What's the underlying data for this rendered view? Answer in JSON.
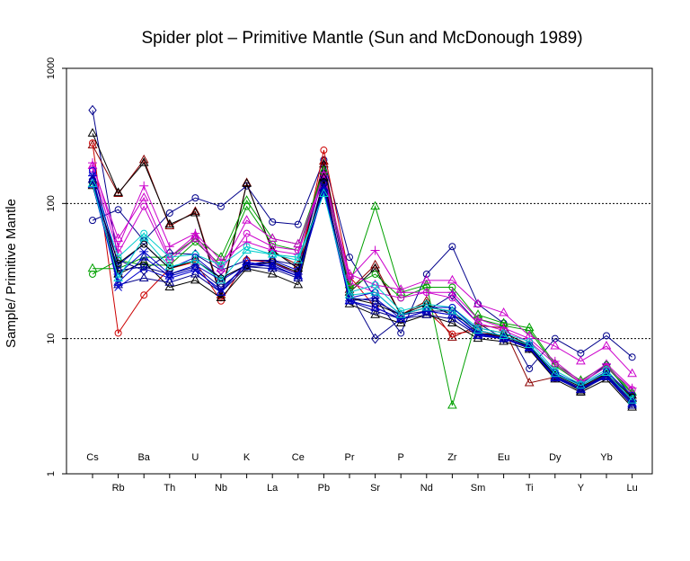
{
  "chart_data": {
    "type": "line",
    "title": "Spider plot –  Primitive Mantle (Sun  and  McDonough 1989)",
    "ylabel": "Sample/ Primitive Mantle",
    "xlabel": "",
    "yscale": "log",
    "ylim": [
      1,
      1000
    ],
    "ytick_labels": [
      "1",
      "10",
      "100",
      "1000"
    ],
    "yticks": [
      1,
      10,
      100,
      1000
    ],
    "reference_lines": [
      10,
      100
    ],
    "categories": [
      "Cs",
      "Rb",
      "Ba",
      "Th",
      "U",
      "Nb",
      "K",
      "La",
      "Ce",
      "Pb",
      "Pr",
      "Sr",
      "P",
      "Nd",
      "Zr",
      "Sm",
      "Eu",
      "Ti",
      "Dy",
      "Y",
      "Yb",
      "Lu"
    ],
    "series": [
      {
        "name": "s1",
        "color": "#00008B",
        "marker": "circle",
        "values": [
          75,
          90,
          53,
          85,
          110,
          95,
          135,
          73,
          70,
          210,
          40,
          20,
          11,
          30,
          48,
          18,
          13,
          6,
          10,
          7.8,
          10.5,
          7.3
        ]
      },
      {
        "name": "s2",
        "color": "#00008B",
        "marker": "diamond",
        "values": [
          490,
          38,
          32,
          43,
          42,
          32,
          38,
          38,
          35,
          165,
          22,
          10,
          14,
          16,
          21,
          13,
          10,
          8.5,
          5.5,
          4.6,
          6.4,
          3.7
        ]
      },
      {
        "name": "s3",
        "color": "#8B0000",
        "marker": "triangle",
        "values": [
          270,
          118,
          210,
          68,
          87,
          21,
          142,
          44,
          35,
          205,
          23,
          35,
          15,
          19,
          10.2,
          12.5,
          12,
          4.7,
          5.2,
          4.2,
          5.5,
          3.8
        ]
      },
      {
        "name": "s4",
        "color": "#000000",
        "marker": "triangle",
        "values": [
          330,
          120,
          200,
          70,
          85,
          20,
          140,
          45,
          33,
          195,
          22,
          33,
          15,
          18,
          15,
          12,
          11,
          9,
          5.2,
          4.1,
          5.3,
          3.6
        ]
      },
      {
        "name": "s5",
        "color": "#CC0000",
        "marker": "circle",
        "values": [
          280,
          11,
          21,
          33,
          37,
          19,
          38,
          37,
          30,
          248,
          29,
          17,
          14,
          16,
          10.8,
          11.5,
          10.2,
          8.5,
          5.1,
          4.3,
          5.6,
          3.4
        ]
      },
      {
        "name": "s6",
        "color": "#00A000",
        "marker": "triangle",
        "values": [
          33,
          33,
          40,
          40,
          55,
          40,
          105,
          55,
          50,
          175,
          25,
          95,
          22,
          25,
          3.2,
          15,
          13,
          12,
          6.5,
          4.9,
          6.4,
          4
        ]
      },
      {
        "name": "s7",
        "color": "#00A000",
        "marker": "circle",
        "values": [
          30,
          38,
          35,
          35,
          52,
          35,
          95,
          50,
          45,
          170,
          24,
          30,
          20,
          24,
          24,
          14,
          12.5,
          11.5,
          6.3,
          4.7,
          6.2,
          3.9
        ]
      },
      {
        "name": "s8",
        "color": "#CC00CC",
        "marker": "plus",
        "values": [
          200,
          48,
          135,
          48,
          60,
          38,
          52,
          45,
          42,
          170,
          28,
          45,
          22,
          22,
          22,
          14,
          12,
          10,
          6.8,
          4.8,
          6.5,
          4.3
        ]
      },
      {
        "name": "s9",
        "color": "#CC00CC",
        "marker": "triangle",
        "values": [
          190,
          55,
          110,
          40,
          58,
          33,
          75,
          55,
          50,
          160,
          30,
          25,
          23,
          27,
          27,
          18,
          15.5,
          10.5,
          8.8,
          6.8,
          8.8,
          5.5
        ]
      },
      {
        "name": "s10",
        "color": "#CC00CC",
        "marker": "circle",
        "values": [
          180,
          43,
          95,
          38,
          55,
          32,
          60,
          48,
          45,
          150,
          26,
          22,
          20,
          22,
          20,
          13,
          11.5,
          9.5,
          6.5,
          4.7,
          6.2,
          4.2
        ]
      },
      {
        "name": "s11",
        "color": "#00CCCC",
        "marker": "circle",
        "values": [
          145,
          40,
          60,
          40,
          42,
          35,
          48,
          42,
          40,
          120,
          22,
          25,
          16,
          18,
          17,
          12,
          11,
          9.5,
          5.8,
          4.6,
          5.9,
          3.6
        ]
      },
      {
        "name": "s12",
        "color": "#0000CC",
        "marker": "circle",
        "values": [
          175,
          35,
          50,
          33,
          40,
          28,
          35,
          38,
          32,
          140,
          20,
          22,
          15,
          17,
          17,
          11.5,
          10.5,
          9,
          5.6,
          4.5,
          5.7,
          3.8
        ]
      },
      {
        "name": "s13",
        "color": "#0000CC",
        "marker": "asterisk",
        "values": [
          160,
          30,
          44,
          30,
          35,
          27,
          35,
          36,
          30,
          150,
          19,
          20,
          14,
          16,
          16,
          11,
          10,
          8.5,
          5.3,
          4.3,
          5.4,
          3.5
        ]
      },
      {
        "name": "s14",
        "color": "#000000",
        "marker": "circle",
        "values": [
          140,
          36,
          50,
          33,
          38,
          28,
          35,
          37,
          31,
          145,
          20,
          18,
          15,
          17,
          16,
          11,
          10.5,
          8.8,
          5.4,
          4.4,
          5.5,
          3.7
        ]
      },
      {
        "name": "s15",
        "color": "#000000",
        "marker": "triangle",
        "values": [
          135,
          30,
          37,
          24,
          27,
          20,
          33,
          30,
          25,
          155,
          18,
          15,
          13,
          15,
          13,
          10,
          9.5,
          8.3,
          5,
          4,
          5,
          3.1
        ]
      },
      {
        "name": "s16",
        "color": "#00008B",
        "marker": "triangle",
        "values": [
          150,
          25,
          28,
          26,
          30,
          22,
          34,
          33,
          28,
          130,
          19,
          16,
          14,
          15,
          14,
          10.5,
          10,
          8.5,
          5.1,
          4.2,
          5.2,
          3.2
        ]
      },
      {
        "name": "s17",
        "color": "#0000CC",
        "marker": "x",
        "values": [
          155,
          24,
          33,
          28,
          32,
          23,
          36,
          34,
          29,
          135,
          19,
          17,
          14,
          16,
          15,
          10.8,
          10,
          8.6,
          5.2,
          4.2,
          5.3,
          3.3
        ]
      },
      {
        "name": "s18",
        "color": "#00008B",
        "marker": "circle",
        "values": [
          148,
          32,
          34,
          30,
          34,
          24,
          34,
          35,
          29,
          140,
          20,
          19,
          15,
          16,
          16,
          11,
          10.2,
          8.7,
          5.2,
          4.3,
          5.3,
          3.4
        ]
      },
      {
        "name": "s19",
        "color": "#0000CC",
        "marker": "triangle",
        "values": [
          138,
          26,
          40,
          29,
          33,
          22,
          37,
          34,
          29,
          125,
          19,
          17,
          14,
          16,
          15,
          10.6,
          10,
          8.6,
          5.1,
          4.2,
          5.2,
          3.3
        ]
      },
      {
        "name": "s20",
        "color": "#00CCCC",
        "marker": "triangle",
        "values": [
          140,
          28,
          56,
          34,
          38,
          27,
          45,
          42,
          38,
          118,
          21,
          22,
          15,
          17,
          16,
          11.5,
          10.5,
          9,
          5.5,
          4.5,
          5.6,
          3.5
        ]
      }
    ]
  }
}
